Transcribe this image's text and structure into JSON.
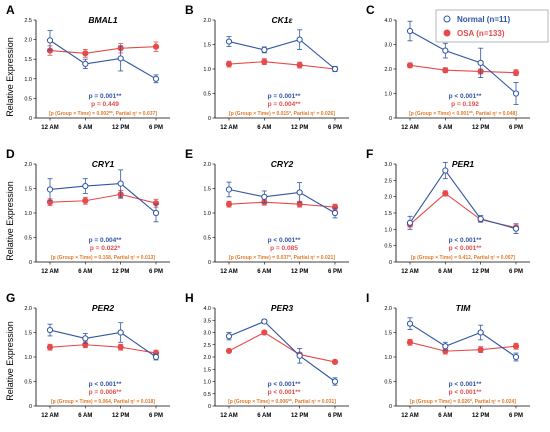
{
  "colors": {
    "normal": "#2f55a4",
    "osa": "#e64b4b",
    "interaction": "#e07a2b",
    "axis": "#000000"
  },
  "y_axis_label": "Relative Expression",
  "legend": {
    "normal": "Normal  (n=11)",
    "osa": "OSA (n=133)"
  },
  "chart_data": [
    {
      "type": "line",
      "panel": "A",
      "title": "BMAL1",
      "categories": [
        "12 AM",
        "6 AM",
        "12 PM",
        "6 PM"
      ],
      "ylim": [
        0,
        2.5
      ],
      "yticks": [
        "0",
        "0.5",
        "1.0",
        "1.5",
        "2.0",
        "2.5"
      ],
      "series": [
        {
          "name": "Normal  (n=11)",
          "values": [
            1.98,
            1.38,
            1.52,
            1.0
          ],
          "errors": [
            0.25,
            0.12,
            0.32,
            0.1
          ]
        },
        {
          "name": "OSA (n=133)",
          "values": [
            1.72,
            1.65,
            1.78,
            1.82
          ],
          "errors": [
            0.12,
            0.1,
            0.12,
            0.12
          ]
        }
      ],
      "p_normal": "p = 0.001**",
      "p_osa": "p = 0.449",
      "interaction": "[p (Group × Time) = 0.002**, Partial η² = 0.037]"
    },
    {
      "type": "line",
      "panel": "B",
      "title": "CK1ε",
      "categories": [
        "12 AM",
        "6 AM",
        "12 PM",
        "6 PM"
      ],
      "ylim": [
        0,
        2.0
      ],
      "yticks": [
        "0",
        "0.5",
        "1.0",
        "1.5",
        "2.0"
      ],
      "series": [
        {
          "name": "Normal  (n=11)",
          "values": [
            1.56,
            1.39,
            1.6,
            1.0
          ],
          "errors": [
            0.1,
            0.06,
            0.2,
            0.05
          ]
        },
        {
          "name": "OSA (n=133)",
          "values": [
            1.1,
            1.15,
            1.08,
            1.0
          ],
          "errors": [
            0.06,
            0.06,
            0.06,
            0.05
          ]
        }
      ],
      "p_normal": "p = 0.001**",
      "p_osa": "p = 0.004**",
      "interaction": "[p (Group × Time) = 0.015*, Partial η² = 0.026]"
    },
    {
      "type": "line",
      "panel": "C",
      "title": "CLOCK",
      "categories": [
        "12 AM",
        "6 AM",
        "12 PM",
        "6 PM"
      ],
      "ylim": [
        0,
        4.0
      ],
      "yticks": [
        "0",
        "1.0",
        "2.0",
        "3.0",
        "4.0"
      ],
      "series": [
        {
          "name": "Normal  (n=11)",
          "values": [
            3.55,
            2.75,
            2.25,
            1.0
          ],
          "errors": [
            0.4,
            0.3,
            0.6,
            0.45
          ]
        },
        {
          "name": "OSA (n=133)",
          "values": [
            2.15,
            1.95,
            1.9,
            1.85
          ],
          "errors": [
            0.1,
            0.1,
            0.1,
            0.12
          ]
        }
      ],
      "p_normal": "p < 0.001**",
      "p_osa": "p = 0.192",
      "interaction": "[p (Group × Time) < 0.001**, Partial η² = 0.048]"
    },
    {
      "type": "line",
      "panel": "D",
      "title": "CRY1",
      "categories": [
        "12 AM",
        "6 AM",
        "12 PM",
        "6 PM"
      ],
      "ylim": [
        0,
        2.0
      ],
      "yticks": [
        "0",
        "0.5",
        "1.0",
        "1.5",
        "2.0"
      ],
      "series": [
        {
          "name": "Normal  (n=11)",
          "values": [
            1.48,
            1.55,
            1.6,
            1.0
          ],
          "errors": [
            0.22,
            0.15,
            0.28,
            0.18
          ]
        },
        {
          "name": "OSA (n=133)",
          "values": [
            1.22,
            1.25,
            1.38,
            1.2
          ],
          "errors": [
            0.07,
            0.07,
            0.08,
            0.08
          ]
        }
      ],
      "p_normal": "p = 0.004**",
      "p_osa": "p = 0.022*",
      "interaction": "[p (Group × Time) = 0.158, Partial η² = 0.013]"
    },
    {
      "type": "line",
      "panel": "E",
      "title": "CRY2",
      "categories": [
        "12 AM",
        "6 AM",
        "12 PM",
        "6 PM"
      ],
      "ylim": [
        0,
        2.0
      ],
      "yticks": [
        "0",
        "0.5",
        "1.0",
        "1.5",
        "2.0"
      ],
      "series": [
        {
          "name": "Normal  (n=11)",
          "values": [
            1.48,
            1.33,
            1.42,
            1.0
          ],
          "errors": [
            0.15,
            0.12,
            0.2,
            0.1
          ]
        },
        {
          "name": "OSA (n=133)",
          "values": [
            1.18,
            1.22,
            1.18,
            1.12
          ],
          "errors": [
            0.06,
            0.06,
            0.06,
            0.06
          ]
        }
      ],
      "p_normal": "p < 0.001**",
      "p_osa": "p = 0.085",
      "interaction": "[p (Group × Time) = 0.037*, Partial η² = 0.021]"
    },
    {
      "type": "line",
      "panel": "F",
      "title": "PER1",
      "categories": [
        "12 AM",
        "6 AM",
        "12 PM",
        "6 PM"
      ],
      "ylim": [
        0,
        3.0
      ],
      "yticks": [
        "0",
        "0.5",
        "1.0",
        "1.5",
        "2.0",
        "2.5",
        "3.0"
      ],
      "series": [
        {
          "name": "Normal  (n=11)",
          "values": [
            1.2,
            2.8,
            1.32,
            1.02
          ],
          "errors": [
            0.2,
            0.25,
            0.1,
            0.15
          ]
        },
        {
          "name": "OSA (n=133)",
          "values": [
            1.15,
            2.1,
            1.3,
            1.05
          ],
          "errors": [
            0.08,
            0.08,
            0.08,
            0.08
          ]
        }
      ],
      "p_normal": "p < 0.001**",
      "p_osa": "p < 0.001**",
      "interaction": "[p (Group × Time) = 0.412, Partial η² = 0.007]"
    },
    {
      "type": "line",
      "panel": "G",
      "title": "PER2",
      "categories": [
        "12 AM",
        "6 AM",
        "12 PM",
        "6 PM"
      ],
      "ylim": [
        0,
        2.0
      ],
      "yticks": [
        "0",
        "0.5",
        "1.0",
        "1.5",
        "2.0"
      ],
      "series": [
        {
          "name": "Normal  (n=11)",
          "values": [
            1.55,
            1.38,
            1.5,
            1.0
          ],
          "errors": [
            0.12,
            0.1,
            0.2,
            0.06
          ]
        },
        {
          "name": "OSA (n=133)",
          "values": [
            1.2,
            1.25,
            1.2,
            1.08
          ],
          "errors": [
            0.06,
            0.06,
            0.06,
            0.06
          ]
        }
      ],
      "p_normal": "p < 0.001**",
      "p_osa": "p = 0.006**",
      "interaction": "[p (Group × Time) = 0.064, Partial η² = 0.018]"
    },
    {
      "type": "line",
      "panel": "H",
      "title": "PER3",
      "categories": [
        "12 AM",
        "6 AM",
        "12 PM",
        "6 PM"
      ],
      "ylim": [
        0,
        4.0
      ],
      "yticks": [
        "0",
        "0.5",
        "1.0",
        "1.5",
        "2.0",
        "2.5",
        "3.0",
        "3.5",
        "4.0"
      ],
      "series": [
        {
          "name": "Normal  (n=11)",
          "values": [
            2.85,
            3.45,
            2.05,
            1.0
          ],
          "errors": [
            0.15,
            0.08,
            0.3,
            0.15
          ]
        },
        {
          "name": "OSA (n=133)",
          "values": [
            2.25,
            3.0,
            2.1,
            1.8
          ],
          "errors": [
            0.06,
            0.06,
            0.08,
            0.08
          ]
        }
      ],
      "p_normal": "p < 0.001**",
      "p_osa": "p < 0.001**",
      "interaction": "[p (Group × Time) = 0.006**, Partial η² = 0.031]"
    },
    {
      "type": "line",
      "panel": "I",
      "title": "TIM",
      "categories": [
        "12 AM",
        "6 AM",
        "12 PM",
        "6 PM"
      ],
      "ylim": [
        0,
        2.0
      ],
      "yticks": [
        "0",
        "0.5",
        "1.0",
        "1.5",
        "2.0"
      ],
      "series": [
        {
          "name": "Normal  (n=11)",
          "values": [
            1.68,
            1.22,
            1.5,
            1.0
          ],
          "errors": [
            0.12,
            0.08,
            0.15,
            0.08
          ]
        },
        {
          "name": "OSA (n=133)",
          "values": [
            1.3,
            1.12,
            1.15,
            1.22
          ],
          "errors": [
            0.06,
            0.06,
            0.06,
            0.06
          ]
        }
      ],
      "p_normal": "p < 0.001**",
      "p_osa": "p < 0.001**",
      "interaction": "[p (Group × Time) = 0.026*, Partial η² = 0.024]"
    }
  ]
}
